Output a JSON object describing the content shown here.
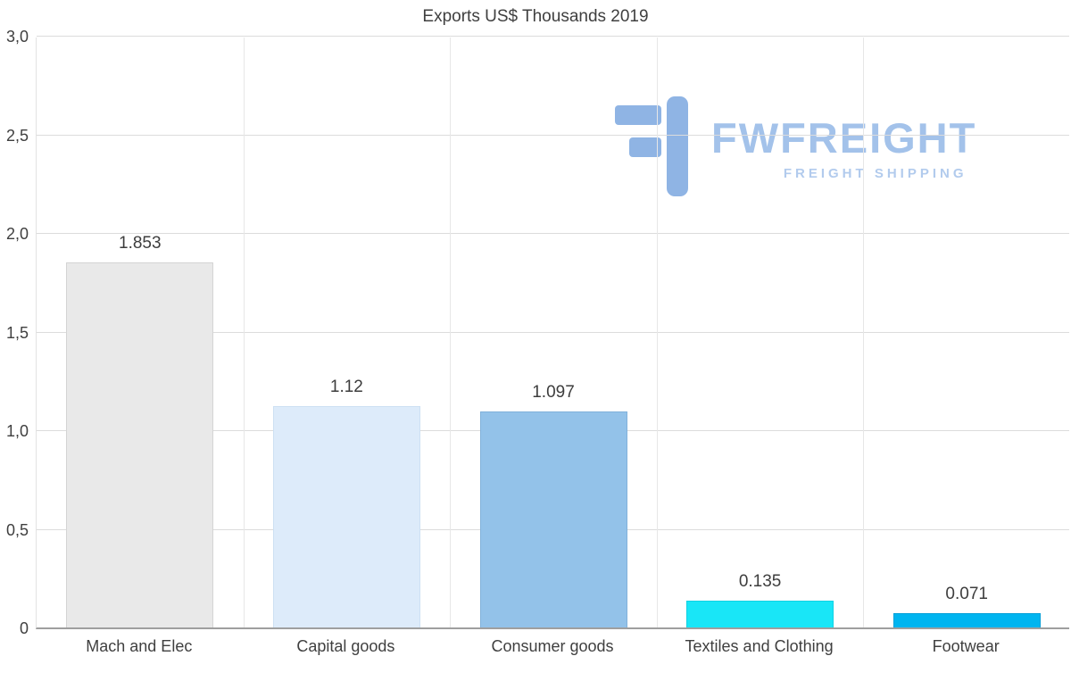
{
  "title": "Exports US$ Thousands 2019",
  "watermark": {
    "brand": "FWFREIGHT",
    "tagline": "FREIGHT SHIPPING",
    "brand_color": "#a3c2ea",
    "icon_color": "#8fb4e4"
  },
  "chart_data": {
    "type": "bar",
    "title": "Exports US$ Thousands 2019",
    "categories": [
      "Mach and Elec",
      "Capital goods",
      "Consumer goods",
      "Textiles and Clothing",
      "Footwear"
    ],
    "values": [
      1.853,
      1.12,
      1.097,
      0.135,
      0.071
    ],
    "value_labels": [
      "1.853",
      "1.12",
      "1.097",
      "0.135",
      "0.071"
    ],
    "bar_colors": [
      "#e9e9e9",
      "#ddebfa",
      "#93c2e9",
      "#19e6f7",
      "#00b5f0"
    ],
    "bar_border_colors": [
      "#d4d4d4",
      "#cde0f3",
      "#81b1da",
      "#0fd2e4",
      "#009fd8"
    ],
    "xlabel": "",
    "ylabel": "",
    "ylim": [
      0,
      3
    ],
    "yticks": [
      0,
      0.5,
      1,
      1.5,
      2,
      2.5,
      3
    ],
    "ytick_labels": [
      "0",
      "0,5",
      "1,0",
      "1,5",
      "2,0",
      "2,5",
      "3,0"
    ],
    "grid": "horizontal gridlines at y ticks, vertical gridlines at category boundaries",
    "legend": "none"
  }
}
